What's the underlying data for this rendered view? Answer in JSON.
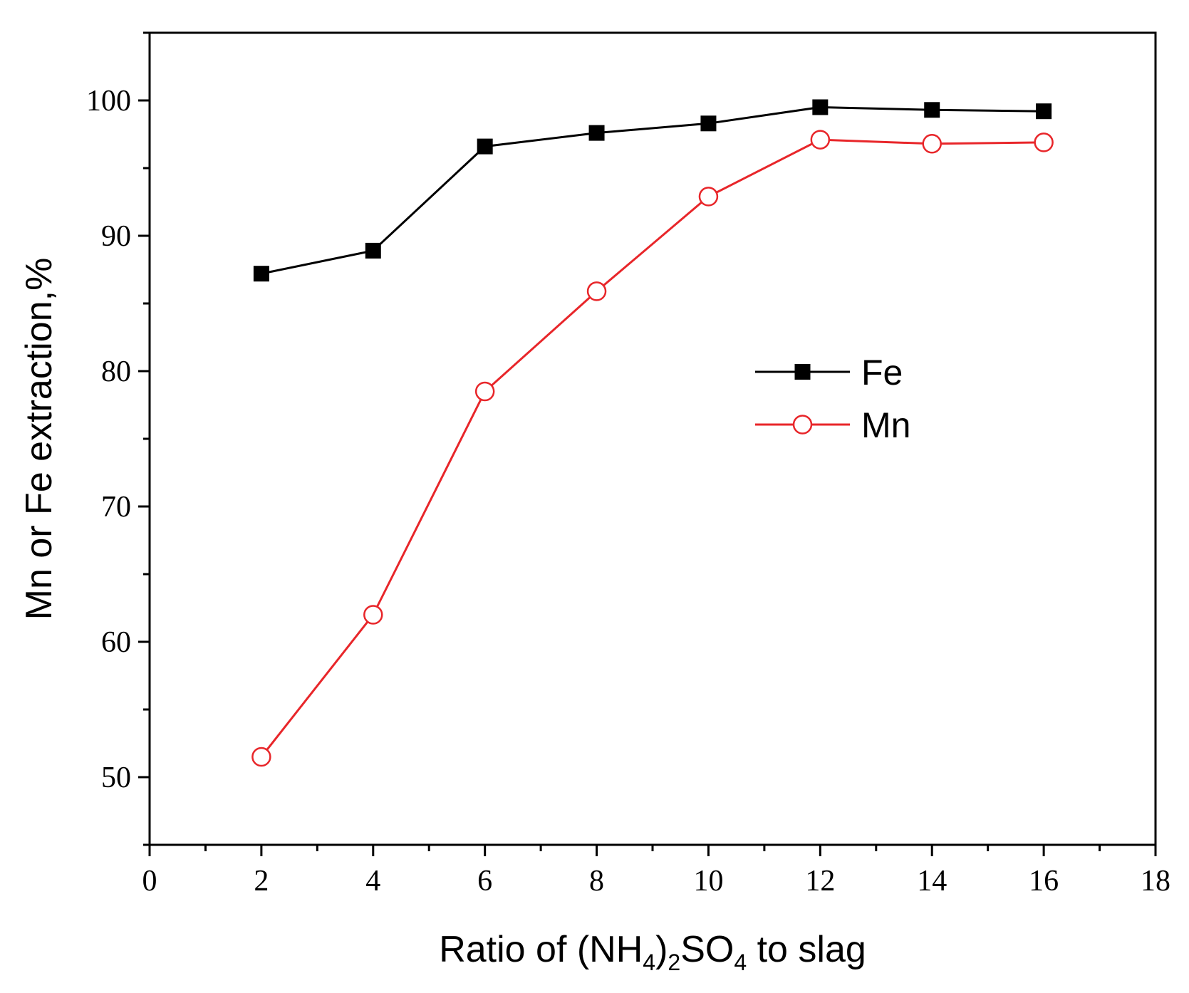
{
  "chart_data": {
    "type": "line",
    "title": "",
    "xlabel": {
      "parts": [
        {
          "text": "Ratio of (NH",
          "sub": false
        },
        {
          "text": "4",
          "sub": true
        },
        {
          "text": ")",
          "sub": false
        },
        {
          "text": "2",
          "sub": true
        },
        {
          "text": "SO",
          "sub": false
        },
        {
          "text": "4",
          "sub": true
        },
        {
          "text": " to slag",
          "sub": false
        }
      ]
    },
    "ylabel": "Mn or Fe extraction,%",
    "xlim": [
      0,
      18
    ],
    "ylim": [
      45,
      105
    ],
    "xticks": [
      0,
      2,
      4,
      6,
      8,
      10,
      12,
      14,
      16,
      18
    ],
    "yticks": [
      50,
      60,
      70,
      80,
      90,
      100
    ],
    "x": [
      2,
      4,
      6,
      8,
      10,
      12,
      14,
      16
    ],
    "series": [
      {
        "name": "Fe",
        "color": "#000000",
        "marker": "filled-square",
        "values": [
          87.2,
          88.9,
          96.6,
          97.6,
          98.3,
          99.5,
          99.3,
          99.2
        ]
      },
      {
        "name": "Mn",
        "color": "#e8262a",
        "marker": "open-circle",
        "values": [
          51.5,
          62.0,
          78.5,
          85.9,
          92.9,
          97.1,
          96.8,
          96.9
        ]
      }
    ],
    "legend_position": "center-right",
    "grid": false
  }
}
